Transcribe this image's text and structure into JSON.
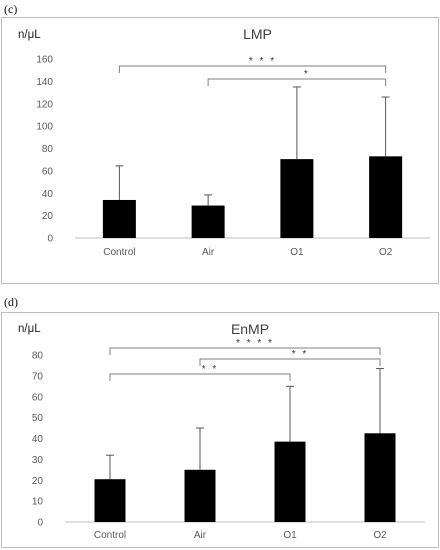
{
  "panels": [
    {
      "label": "(c)"
    },
    {
      "label": "(d)"
    }
  ],
  "chart_data": [
    {
      "type": "bar",
      "title": "LMP",
      "ylabel": "n/μL",
      "xlabel": "",
      "categories": [
        "Control",
        "Air",
        "O1",
        "O2"
      ],
      "values": [
        34,
        29,
        70.5,
        73
      ],
      "error_plus": [
        30.5,
        9.5,
        64.5,
        53
      ],
      "ylim": [
        0,
        160
      ],
      "yticks": [
        0,
        20,
        40,
        60,
        80,
        100,
        120,
        140,
        160
      ],
      "grid": false,
      "bar_color": "#000000",
      "significance": [
        {
          "from": 0,
          "to": 3,
          "label": "* * *"
        },
        {
          "from": 1,
          "to": 3,
          "label": "*"
        }
      ]
    },
    {
      "type": "bar",
      "title": "EnMP",
      "ylabel": "n/μL",
      "xlabel": "",
      "categories": [
        "Control",
        "Air",
        "O1",
        "O2"
      ],
      "values": [
        20.5,
        25,
        38.5,
        42.5
      ],
      "error_plus": [
        11.5,
        20,
        26.5,
        31
      ],
      "ylim": [
        0,
        80
      ],
      "yticks": [
        0,
        10,
        20,
        30,
        40,
        50,
        60,
        70,
        80
      ],
      "grid": false,
      "bar_color": "#000000",
      "significance": [
        {
          "from": 0,
          "to": 3,
          "label": "* * * *"
        },
        {
          "from": 1,
          "to": 3,
          "label": "* *"
        },
        {
          "from": 0,
          "to": 2,
          "label": "* *"
        }
      ]
    }
  ]
}
